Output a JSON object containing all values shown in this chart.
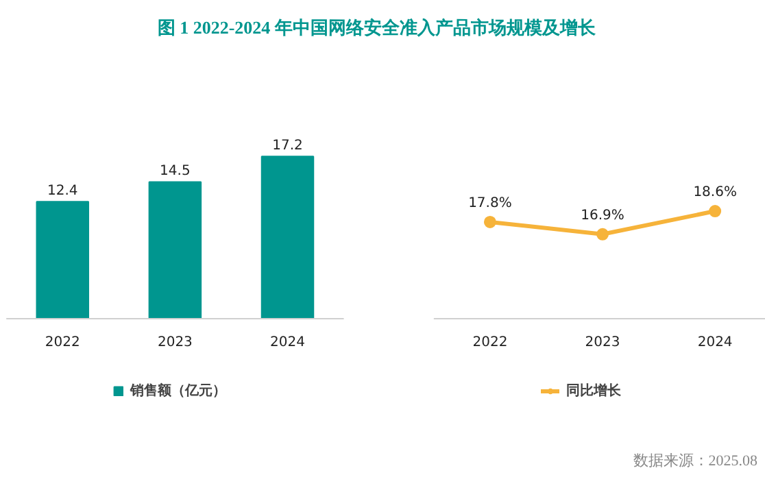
{
  "chart_data": [
    {
      "type": "bar",
      "title": "图 1    2022-2024 年中国网络安全准入产品市场规模及增长",
      "categories": [
        "2022",
        "2023",
        "2024"
      ],
      "series": [
        {
          "name": "销售额（亿元）",
          "color": "#00968f",
          "values": [
            12.4,
            14.5,
            17.2
          ]
        }
      ],
      "data_labels": true,
      "grid": false,
      "legend": "bottom",
      "tick_labels": "x"
    },
    {
      "type": "line",
      "categories": [
        "2022",
        "2023",
        "2024"
      ],
      "series": [
        {
          "name": "同比增长",
          "color": "#f6b33a",
          "values": [
            17.8,
            16.9,
            18.6
          ],
          "value_labels": [
            "17.8%",
            "16.9%",
            "18.6%"
          ]
        }
      ],
      "marker": "circle",
      "line_style": "solid",
      "grid": false,
      "legend": "bottom",
      "tick_labels": "x",
      "annotations": [
        "数据来源：2025.08"
      ]
    }
  ]
}
